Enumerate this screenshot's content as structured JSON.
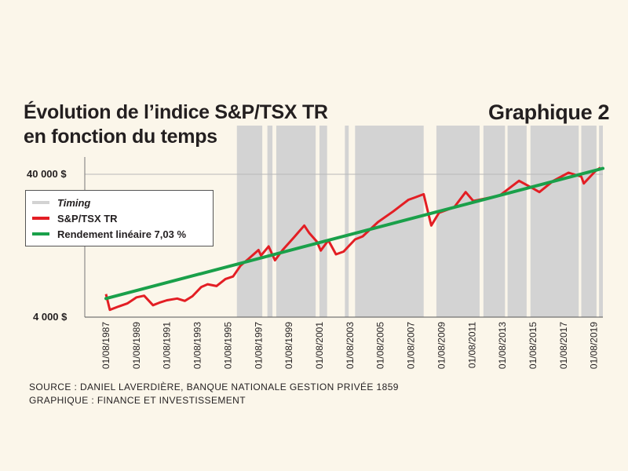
{
  "title": [
    "Évolution de l’indice S&P/TSX TR",
    "en fonction du temps"
  ],
  "badge": "Graphique 2",
  "colors": {
    "background": "#fbf6ea",
    "timing": "#d3d3d3",
    "index_line": "#e31e24",
    "linear_line": "#1aa04a"
  },
  "source": [
    "SOURCE : DANIEL LAVERDIÈRE, BANQUE NATIONALE GESTION PRIVÉE 1859",
    "GRAPHIQUE : FINANCE ET INVESTISSEMENT"
  ],
  "chart_data": {
    "type": "line",
    "y_scale": "log",
    "ylim": [
      4000,
      60000
    ],
    "yticks": [
      {
        "value": 40000,
        "label": "40 000 $"
      },
      {
        "value": 4000,
        "label": "4 000 $"
      }
    ],
    "x_range": [
      "1987-08-01",
      "2020-03-01"
    ],
    "xticks": [
      "01/08/1987",
      "01/08/1989",
      "01/08/1991",
      "01/08/1993",
      "01/08/1995",
      "01/08/1997",
      "01/08/1999",
      "01/08/2001",
      "01/08/2003",
      "01/08/2005",
      "01/08/2007",
      "01/08/2009",
      "01/08/2011",
      "01/08/2013",
      "01/08/2015",
      "01/08/2017",
      "01/08/2019"
    ],
    "legend": [
      {
        "label": "Timing",
        "italic": true,
        "color": "#d3d3d3"
      },
      {
        "label": "S&P/TSX TR",
        "italic": false,
        "color": "#e31e24"
      },
      {
        "label": "Rendement linéaire 7,03 %",
        "italic": false,
        "color": "#1aa04a"
      }
    ],
    "legend_position": "left",
    "timing_periods": [
      [
        "1996-03",
        "1997-11"
      ],
      [
        "1998-03",
        "1998-07"
      ],
      [
        "1998-10",
        "2001-05"
      ],
      [
        "2001-08",
        "2002-02"
      ],
      [
        "2003-04",
        "2003-07"
      ],
      [
        "2003-12",
        "2008-06"
      ],
      [
        "2009-04",
        "2012-02"
      ],
      [
        "2012-05",
        "2013-10"
      ],
      [
        "2013-12",
        "2015-03"
      ],
      [
        "2015-06",
        "2018-08"
      ],
      [
        "2018-10",
        "2019-10"
      ],
      [
        "2019-12",
        "2020-03"
      ]
    ],
    "series": [
      {
        "name": "S&P/TSX TR",
        "points": [
          [
            "1987-08",
            5800
          ],
          [
            "1987-11",
            4500
          ],
          [
            "1988-06",
            4750
          ],
          [
            "1989-01",
            5000
          ],
          [
            "1989-08",
            5500
          ],
          [
            "1990-02",
            5650
          ],
          [
            "1990-09",
            4850
          ],
          [
            "1991-02",
            5050
          ],
          [
            "1991-08",
            5250
          ],
          [
            "1992-04",
            5400
          ],
          [
            "1992-10",
            5200
          ],
          [
            "1993-04",
            5600
          ],
          [
            "1993-11",
            6500
          ],
          [
            "1994-04",
            6800
          ],
          [
            "1994-11",
            6600
          ],
          [
            "1995-06",
            7400
          ],
          [
            "1995-12",
            7700
          ],
          [
            "1996-06",
            9200
          ],
          [
            "1996-12",
            10200
          ],
          [
            "1997-08",
            11800
          ],
          [
            "1997-10",
            10800
          ],
          [
            "1998-04",
            12500
          ],
          [
            "1998-09",
            10000
          ],
          [
            "1999-03",
            11800
          ],
          [
            "1999-12",
            14500
          ],
          [
            "2000-08",
            17500
          ],
          [
            "2000-12",
            15500
          ],
          [
            "2001-06",
            13500
          ],
          [
            "2001-09",
            11700
          ],
          [
            "2002-03",
            13800
          ],
          [
            "2002-09",
            11000
          ],
          [
            "2003-03",
            11500
          ],
          [
            "2003-12",
            14000
          ],
          [
            "2004-06",
            14700
          ],
          [
            "2005-06",
            18500
          ],
          [
            "2006-06",
            22000
          ],
          [
            "2007-06",
            26500
          ],
          [
            "2007-11",
            27500
          ],
          [
            "2008-06",
            29000
          ],
          [
            "2008-12",
            17500
          ],
          [
            "2009-06",
            21500
          ],
          [
            "2010-06",
            23500
          ],
          [
            "2011-03",
            30000
          ],
          [
            "2011-09",
            26000
          ],
          [
            "2012-06",
            27000
          ],
          [
            "2013-06",
            28500
          ],
          [
            "2014-09",
            36000
          ],
          [
            "2015-09",
            31500
          ],
          [
            "2016-01",
            30000
          ],
          [
            "2016-12",
            36000
          ],
          [
            "2017-12",
            41000
          ],
          [
            "2018-10",
            38500
          ],
          [
            "2018-12",
            34500
          ],
          [
            "2019-09",
            42000
          ],
          [
            "2020-01",
            44500
          ]
        ]
      },
      {
        "name": "Rendement linéaire 7,03 %",
        "points": [
          [
            "1987-08",
            5400
          ],
          [
            "2020-03",
            44000
          ]
        ]
      }
    ]
  }
}
